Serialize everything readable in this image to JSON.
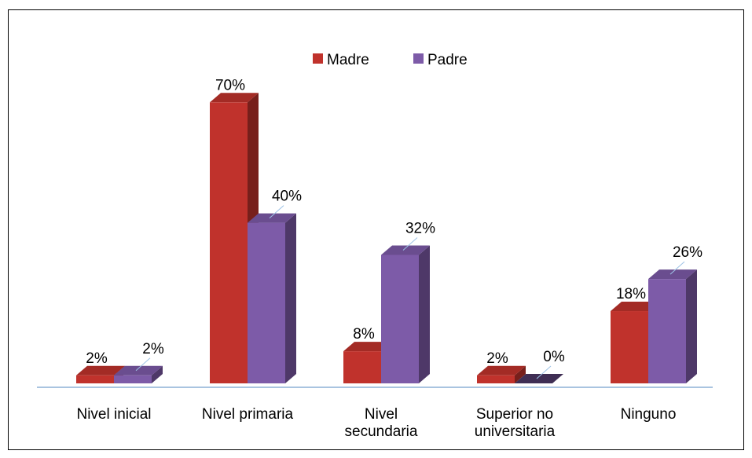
{
  "chart_data": {
    "type": "bar3d",
    "categories": [
      "Nivel inicial",
      "Nivel primaria",
      "Nivel secundaria",
      "Superior no universitaria",
      "Ninguno"
    ],
    "series": [
      {
        "name": "Madre",
        "color": "#c0322c",
        "values": [
          2,
          70,
          8,
          2,
          18
        ],
        "value_labels": [
          "2%",
          "70%",
          "8%",
          "2%",
          "18%"
        ]
      },
      {
        "name": "Padre",
        "color": "#7d5ba8",
        "values": [
          2,
          40,
          32,
          0,
          26
        ],
        "value_labels": [
          "2%",
          "40%",
          "32%",
          "0%",
          "26%"
        ]
      }
    ],
    "legend": "top"
  }
}
